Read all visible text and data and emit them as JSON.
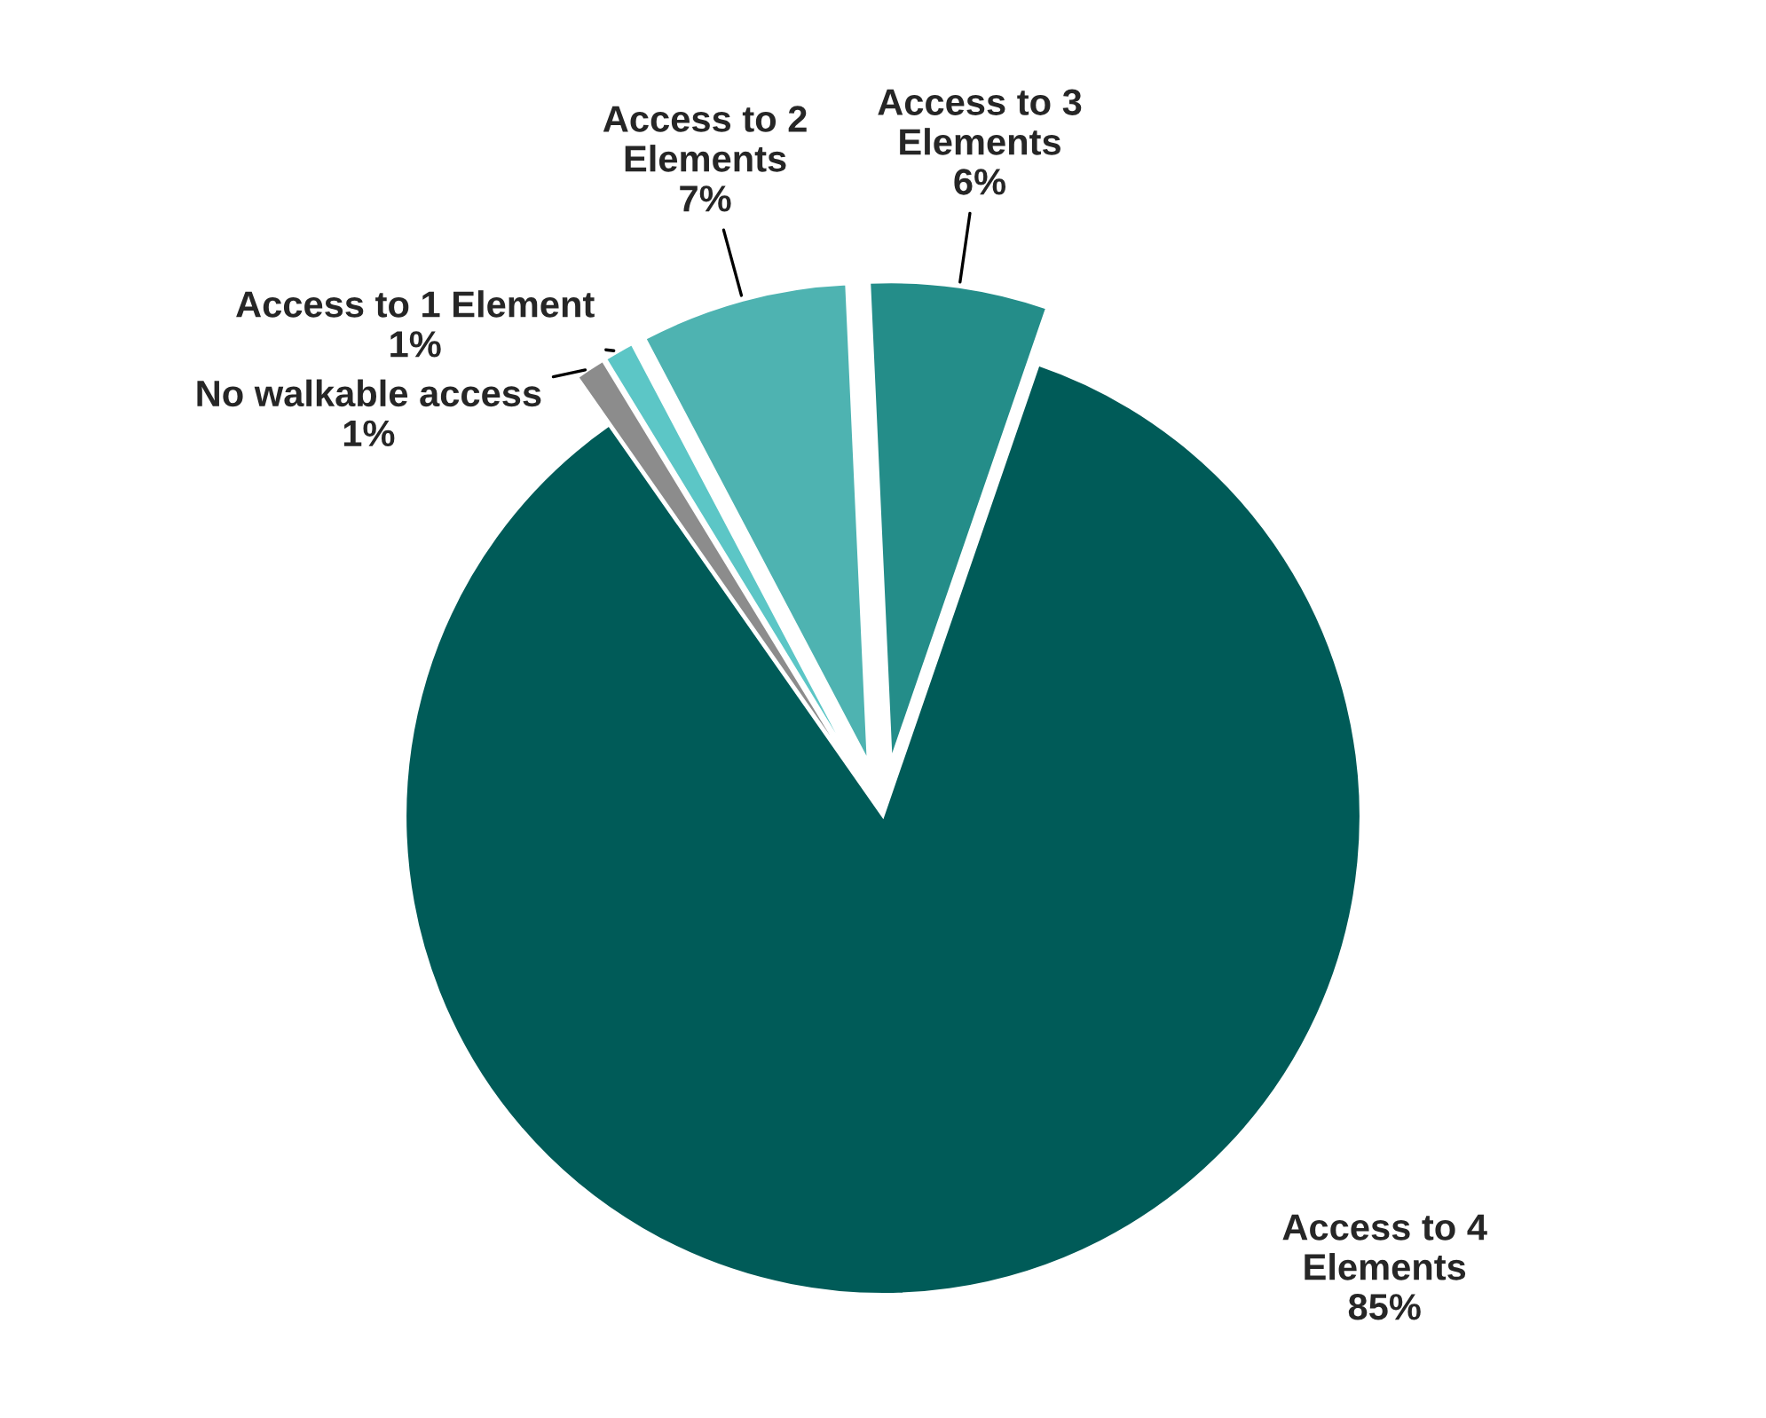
{
  "chart_data": {
    "type": "pie",
    "categories": [
      "No walkable access",
      "Access to 1 Element",
      "Access to 2 Elements",
      "Access to 3 Elements",
      "Access to 4 Elements"
    ],
    "values": [
      1,
      1,
      7,
      6,
      85
    ],
    "value_labels": [
      "1%",
      "1%",
      "7%",
      "6%",
      "85%"
    ],
    "colors": [
      "#8c8c8c",
      "#5cc6c6",
      "#4eb3b1",
      "#248d89",
      "#005b58"
    ],
    "legend": false
  }
}
